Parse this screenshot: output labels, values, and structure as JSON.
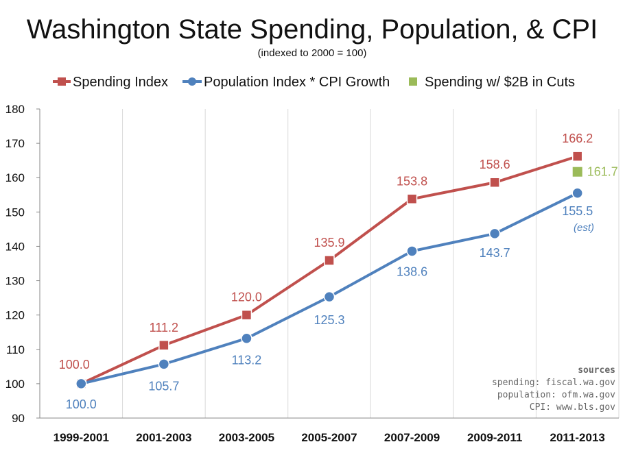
{
  "chart_data": {
    "type": "line",
    "title": "Washington State Spending, Population, & CPI",
    "subtitle": "(indexed to 2000 = 100)",
    "categories": [
      "1999-2001",
      "2001-2003",
      "2003-2005",
      "2005-2007",
      "2007-2009",
      "2009-2011",
      "2011-2013"
    ],
    "ylim": [
      90,
      180
    ],
    "yticks": [
      90,
      100,
      110,
      120,
      130,
      140,
      150,
      160,
      170,
      180
    ],
    "grid": "vertical",
    "legend_position": "top",
    "series": [
      {
        "name": "Spending Index",
        "color": "#c0504d",
        "marker": "square",
        "values": [
          100.0,
          111.2,
          120.0,
          135.9,
          153.8,
          158.6,
          166.2
        ],
        "labels": [
          "100.0",
          "111.2",
          "120.0",
          "135.9",
          "153.8",
          "158.6",
          "166.2"
        ]
      },
      {
        "name": "Population Index * CPI Growth",
        "color": "#4f81bd",
        "marker": "circle",
        "values": [
          100.0,
          105.7,
          113.2,
          125.3,
          138.6,
          143.7,
          155.5
        ],
        "labels": [
          "100.0",
          "105.7",
          "113.2",
          "125.3",
          "138.6",
          "143.7",
          "155.5"
        ]
      },
      {
        "name": "Spending w/ $2B in Cuts",
        "color": "#9bbb59",
        "marker": "square",
        "points": [
          {
            "category": "2011-2013",
            "value": 161.7,
            "label": "161.7"
          }
        ]
      }
    ],
    "annotations": {
      "estimate_note": "(est)",
      "sources_title": "sources",
      "sources": [
        "spending: fiscal.wa.gov",
        "population: ofm.wa.gov",
        "CPI: www.bls.gov"
      ]
    }
  }
}
